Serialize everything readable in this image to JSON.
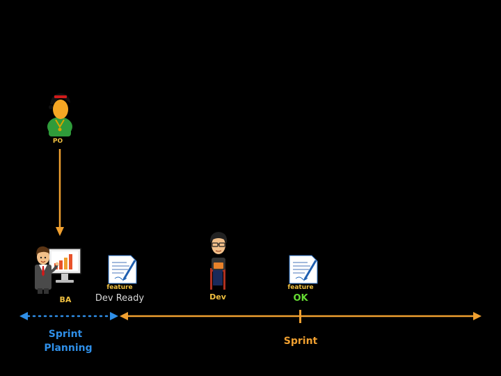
{
  "actors": {
    "po": "PO",
    "ba": "BA",
    "dev": "Dev"
  },
  "documents": {
    "doc1_label": "feature",
    "doc1_status": "Dev Ready",
    "doc2_label": "feature",
    "doc2_status": "OK"
  },
  "phases": {
    "planning_line1": "Sprint",
    "planning_line2": "Planning",
    "sprint": "Sprint"
  },
  "colors": {
    "background": "#000000",
    "orange": "#f0a030",
    "blue": "#2f8fe8",
    "green": "#66dd33",
    "label_gray": "#d8d8d8",
    "label_yellow": "#f0c040"
  }
}
